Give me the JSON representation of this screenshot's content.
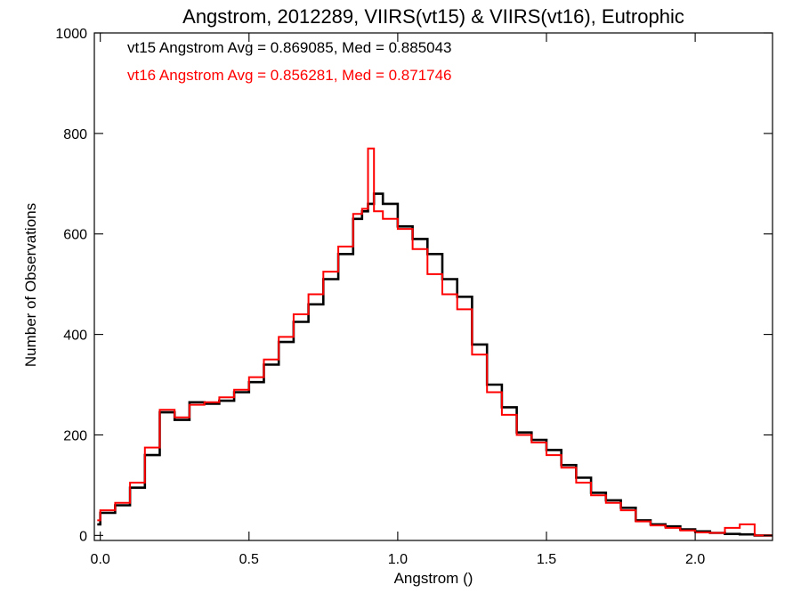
{
  "chart_data": {
    "type": "line",
    "style": "step-histogram",
    "title": "Angstrom, 2012289, VIIRS(vt15) & VIIRS(vt16), Eutrophic",
    "xlabel": "Angstrom ()",
    "ylabel": "Number of Observations",
    "xlim": [
      -0.02,
      2.26
    ],
    "ylim": [
      -10,
      1000
    ],
    "xticks": [
      0.0,
      0.5,
      1.0,
      1.5,
      2.0
    ],
    "xtick_labels": [
      "0.0",
      "0.5",
      "1.0",
      "1.5",
      "2.0"
    ],
    "yticks": [
      0,
      200,
      400,
      600,
      800,
      1000
    ],
    "ytick_labels": [
      "0",
      "200",
      "400",
      "600",
      "800",
      "1000"
    ],
    "grid": false,
    "legend_position": "top-left",
    "annotations": [
      {
        "text": "vt15 Angstrom Avg = 0.869085, Med = 0.885043",
        "color": "#000000"
      },
      {
        "text": "vt16 Angstrom Avg = 0.856281, Med = 0.871746",
        "color": "#ff0000"
      }
    ],
    "series": [
      {
        "color": "#000000",
        "x": [
          -0.01,
          0.0,
          0.05,
          0.1,
          0.15,
          0.2,
          0.25,
          0.3,
          0.35,
          0.4,
          0.45,
          0.5,
          0.55,
          0.6,
          0.65,
          0.7,
          0.75,
          0.8,
          0.85,
          0.88,
          0.9,
          0.92,
          0.95,
          1.0,
          1.05,
          1.1,
          1.15,
          1.2,
          1.25,
          1.3,
          1.35,
          1.4,
          1.45,
          1.5,
          1.55,
          1.6,
          1.65,
          1.7,
          1.75,
          1.8,
          1.85,
          1.9,
          1.95,
          2.0,
          2.05,
          2.1,
          2.15,
          2.2,
          2.25
        ],
        "values": [
          22,
          45,
          60,
          95,
          160,
          245,
          230,
          265,
          262,
          268,
          285,
          305,
          340,
          385,
          425,
          460,
          510,
          560,
          630,
          645,
          660,
          680,
          660,
          615,
          590,
          560,
          510,
          475,
          380,
          300,
          255,
          205,
          190,
          170,
          140,
          115,
          85,
          70,
          55,
          30,
          22,
          18,
          12,
          8,
          5,
          3,
          2,
          0,
          0
        ]
      },
      {
        "color": "#ff0000",
        "x": [
          -0.01,
          0.0,
          0.05,
          0.1,
          0.15,
          0.2,
          0.25,
          0.3,
          0.35,
          0.4,
          0.45,
          0.5,
          0.55,
          0.6,
          0.65,
          0.7,
          0.75,
          0.8,
          0.85,
          0.88,
          0.9,
          0.92,
          0.95,
          1.0,
          1.05,
          1.1,
          1.15,
          1.2,
          1.25,
          1.3,
          1.35,
          1.4,
          1.45,
          1.5,
          1.55,
          1.6,
          1.65,
          1.7,
          1.75,
          1.8,
          1.85,
          1.9,
          1.95,
          2.0,
          2.05,
          2.1,
          2.15,
          2.2,
          2.25
        ],
        "values": [
          30,
          50,
          65,
          105,
          175,
          250,
          235,
          260,
          265,
          275,
          290,
          315,
          350,
          395,
          440,
          480,
          525,
          575,
          640,
          650,
          770,
          645,
          630,
          610,
          570,
          520,
          480,
          450,
          360,
          285,
          240,
          200,
          185,
          160,
          135,
          105,
          80,
          65,
          50,
          28,
          20,
          15,
          10,
          6,
          5,
          15,
          22,
          0,
          0
        ]
      }
    ]
  }
}
